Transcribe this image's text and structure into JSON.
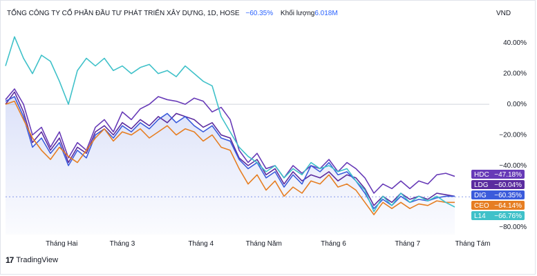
{
  "header": {
    "title": "TỔNG CÔNG TY CỔ PHẦN ĐẦU TƯ PHÁT TRIỂN XÂY DỰNG, 1D, HOSE",
    "change": "−60.35%",
    "volume_label": "Khối lượng",
    "volume": "6.018M",
    "currency": "VND"
  },
  "brand": {
    "logo": "17",
    "name": "TradingView"
  },
  "chart_data": {
    "type": "line",
    "y_unit": "%",
    "ylim": [
      -85,
      50
    ],
    "y_ticks": [
      {
        "value": 40,
        "label": "40.00%"
      },
      {
        "value": 20,
        "label": "20.00%"
      },
      {
        "value": 0,
        "label": "0.00%"
      },
      {
        "value": -20,
        "label": "−20.00%"
      },
      {
        "value": -40,
        "label": "−40.00%"
      },
      {
        "value": -80,
        "label": "−80.00%"
      }
    ],
    "x_ticks": [
      {
        "x": 0.125,
        "label": "Tháng Hai"
      },
      {
        "x": 0.26,
        "label": "Tháng 3"
      },
      {
        "x": 0.435,
        "label": "Tháng 4"
      },
      {
        "x": 0.575,
        "label": "Tháng Năm"
      },
      {
        "x": 0.73,
        "label": "Tháng 6"
      },
      {
        "x": 0.895,
        "label": "Tháng 7"
      },
      {
        "x": 1.04,
        "label": "Tháng Tám"
      }
    ],
    "series": [
      {
        "name": "HDC",
        "color": "#673ab7",
        "last": -47.18,
        "last_label": "−47.18%",
        "x": [
          0,
          0.02,
          0.04,
          0.06,
          0.08,
          0.1,
          0.12,
          0.14,
          0.16,
          0.18,
          0.2,
          0.22,
          0.24,
          0.26,
          0.28,
          0.3,
          0.32,
          0.34,
          0.36,
          0.38,
          0.4,
          0.42,
          0.44,
          0.46,
          0.48,
          0.5,
          0.52,
          0.54,
          0.56,
          0.58,
          0.6,
          0.62,
          0.64,
          0.66,
          0.68,
          0.7,
          0.72,
          0.74,
          0.76,
          0.78,
          0.8,
          0.82,
          0.84,
          0.86,
          0.88,
          0.9,
          0.92,
          0.94,
          0.96,
          0.98,
          1
        ],
        "y": [
          3,
          10,
          0,
          -20,
          -15,
          -28,
          -18,
          -35,
          -25,
          -30,
          -15,
          -10,
          -18,
          -5,
          -10,
          -3,
          0,
          5,
          3,
          2,
          0,
          4,
          2,
          -5,
          -2,
          -10,
          -30,
          -38,
          -32,
          -42,
          -40,
          -48,
          -40,
          -45,
          -40,
          -42,
          -36,
          -44,
          -38,
          -42,
          -48,
          -58,
          -52,
          -55,
          -50,
          -55,
          -50,
          -52,
          -46,
          -45,
          -47
        ]
      },
      {
        "name": "LDG",
        "color": "#5b2c9f",
        "last": -60.04,
        "last_label": "−60.04%",
        "x": [
          0,
          0.02,
          0.04,
          0.06,
          0.08,
          0.1,
          0.12,
          0.14,
          0.16,
          0.18,
          0.2,
          0.22,
          0.24,
          0.26,
          0.28,
          0.3,
          0.32,
          0.34,
          0.36,
          0.38,
          0.4,
          0.42,
          0.44,
          0.46,
          0.48,
          0.5,
          0.52,
          0.54,
          0.56,
          0.58,
          0.6,
          0.62,
          0.64,
          0.66,
          0.68,
          0.7,
          0.72,
          0.74,
          0.76,
          0.78,
          0.8,
          0.82,
          0.84,
          0.86,
          0.88,
          0.9,
          0.92,
          0.94,
          0.96,
          0.98,
          1
        ],
        "y": [
          0,
          8,
          -5,
          -25,
          -18,
          -30,
          -22,
          -38,
          -28,
          -32,
          -18,
          -14,
          -20,
          -12,
          -16,
          -10,
          -14,
          -8,
          -12,
          -6,
          -8,
          -10,
          -15,
          -12,
          -20,
          -22,
          -35,
          -40,
          -36,
          -46,
          -42,
          -52,
          -44,
          -50,
          -46,
          -48,
          -44,
          -50,
          -46,
          -48,
          -55,
          -66,
          -60,
          -64,
          -58,
          -62,
          -60,
          -62,
          -58,
          -59,
          -60
        ]
      },
      {
        "name": "DIG",
        "color": "#3b5bdb",
        "last": -60.35,
        "last_label": "−60.35%",
        "x": [
          0,
          0.02,
          0.04,
          0.06,
          0.08,
          0.1,
          0.12,
          0.14,
          0.16,
          0.18,
          0.2,
          0.22,
          0.24,
          0.26,
          0.28,
          0.3,
          0.32,
          0.34,
          0.36,
          0.38,
          0.4,
          0.42,
          0.44,
          0.46,
          0.48,
          0.5,
          0.52,
          0.54,
          0.56,
          0.58,
          0.6,
          0.62,
          0.64,
          0.66,
          0.68,
          0.7,
          0.72,
          0.74,
          0.76,
          0.78,
          0.8,
          0.82,
          0.84,
          0.86,
          0.88,
          0.9,
          0.92,
          0.94,
          0.96,
          0.98,
          1
        ],
        "y": [
          2,
          5,
          -8,
          -28,
          -22,
          -32,
          -25,
          -40,
          -30,
          -35,
          -20,
          -16,
          -22,
          -14,
          -18,
          -12,
          -16,
          -10,
          -6,
          -12,
          -8,
          -14,
          -18,
          -14,
          -22,
          -24,
          -36,
          -42,
          -38,
          -48,
          -44,
          -54,
          -46,
          -52,
          -40,
          -44,
          -38,
          -46,
          -44,
          -50,
          -58,
          -68,
          -62,
          -66,
          -60,
          -64,
          -62,
          -63,
          -61,
          -60,
          -60
        ]
      },
      {
        "name": "CEO",
        "color": "#e67e22",
        "last": -64.14,
        "last_label": "−64.14%",
        "x": [
          0,
          0.02,
          0.04,
          0.06,
          0.08,
          0.1,
          0.12,
          0.14,
          0.16,
          0.18,
          0.2,
          0.22,
          0.24,
          0.26,
          0.28,
          0.3,
          0.32,
          0.34,
          0.36,
          0.38,
          0.4,
          0.42,
          0.44,
          0.46,
          0.48,
          0.5,
          0.52,
          0.54,
          0.56,
          0.58,
          0.6,
          0.62,
          0.64,
          0.66,
          0.68,
          0.7,
          0.72,
          0.74,
          0.76,
          0.78,
          0.8,
          0.82,
          0.84,
          0.86,
          0.88,
          0.9,
          0.92,
          0.94,
          0.96,
          0.98,
          1
        ],
        "y": [
          0,
          2,
          -10,
          -22,
          -30,
          -36,
          -28,
          -34,
          -38,
          -30,
          -22,
          -16,
          -24,
          -18,
          -20,
          -16,
          -22,
          -18,
          -14,
          -20,
          -16,
          -18,
          -24,
          -20,
          -28,
          -30,
          -42,
          -52,
          -46,
          -56,
          -50,
          -60,
          -54,
          -58,
          -50,
          -52,
          -46,
          -54,
          -52,
          -56,
          -64,
          -72,
          -64,
          -68,
          -64,
          -68,
          -65,
          -66,
          -63,
          -64,
          -64
        ]
      },
      {
        "name": "L14",
        "color": "#3fc1c9",
        "last": -66.76,
        "last_label": "−66.76%",
        "x": [
          0,
          0.02,
          0.04,
          0.06,
          0.08,
          0.1,
          0.12,
          0.14,
          0.16,
          0.18,
          0.2,
          0.22,
          0.24,
          0.26,
          0.28,
          0.3,
          0.32,
          0.34,
          0.36,
          0.38,
          0.4,
          0.42,
          0.44,
          0.46,
          0.48,
          0.5,
          0.52,
          0.54,
          0.56,
          0.58,
          0.6,
          0.62,
          0.64,
          0.66,
          0.68,
          0.7,
          0.72,
          0.74,
          0.76,
          0.78,
          0.8,
          0.82,
          0.84,
          0.86,
          0.88,
          0.9,
          0.92,
          0.94,
          0.96,
          0.98,
          1
        ],
        "y": [
          25,
          44,
          30,
          20,
          32,
          28,
          15,
          0,
          22,
          30,
          25,
          30,
          22,
          25,
          20,
          24,
          26,
          20,
          22,
          18,
          25,
          20,
          15,
          12,
          -8,
          -18,
          -28,
          -34,
          -38,
          -44,
          -40,
          -48,
          -42,
          -46,
          -38,
          -42,
          -40,
          -44,
          -42,
          -50,
          -56,
          -70,
          -60,
          -66,
          -58,
          -64,
          -60,
          -63,
          -60,
          -64,
          -67
        ]
      }
    ]
  }
}
